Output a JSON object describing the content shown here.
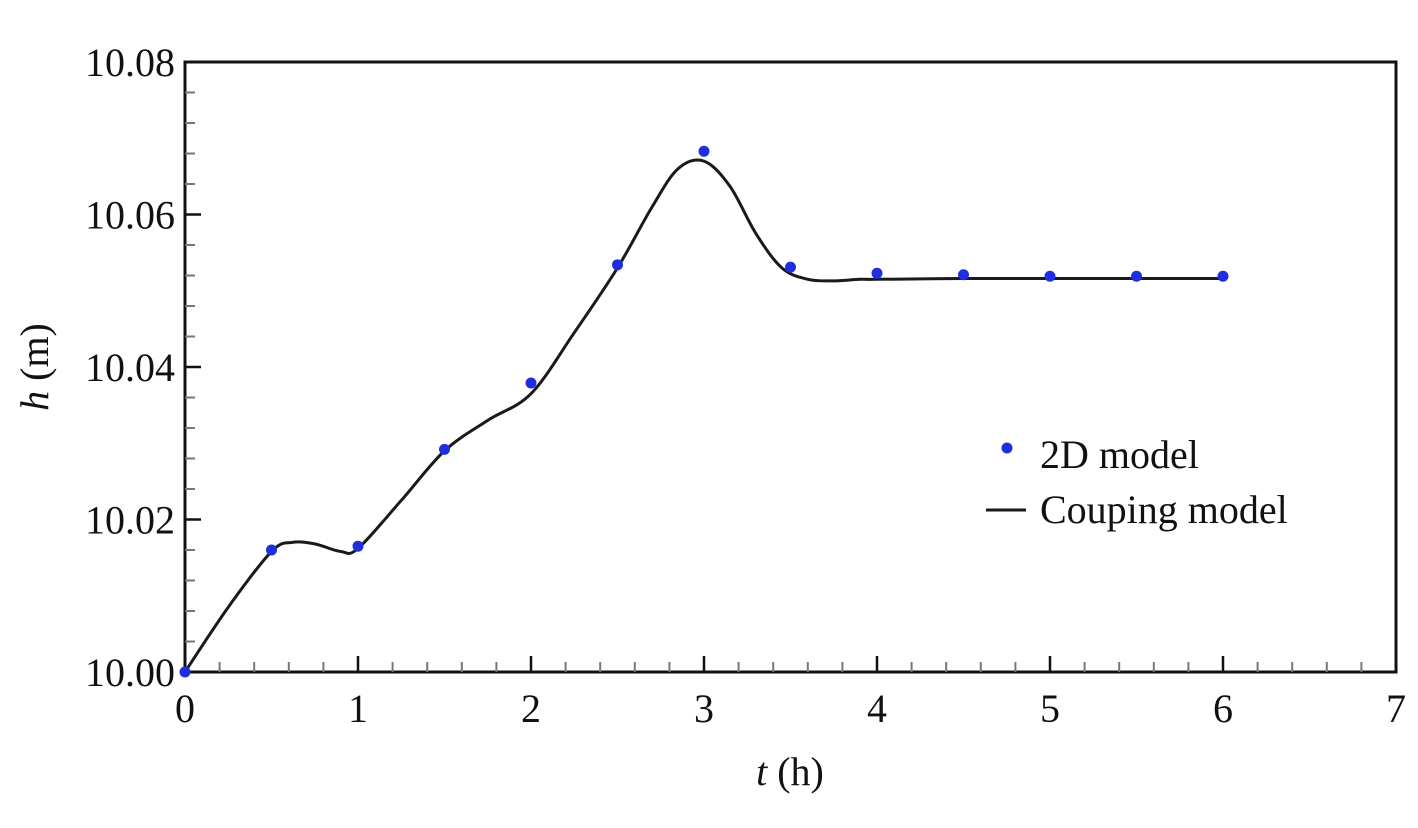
{
  "chart_data": {
    "type": "line",
    "xlabel": {
      "var": "t",
      "unit": " (h)"
    },
    "ylabel": {
      "var": "h",
      "unit": " (m)"
    },
    "xlim": [
      0,
      7
    ],
    "ylim": [
      10.0,
      10.08
    ],
    "x_ticks": [
      0,
      1,
      2,
      3,
      4,
      5,
      6,
      7
    ],
    "x_tick_labels": [
      "0",
      "1",
      "2",
      "3",
      "4",
      "5",
      "6",
      "7"
    ],
    "y_ticks": [
      10.0,
      10.02,
      10.04,
      10.06,
      10.08
    ],
    "y_tick_labels": [
      "10.00",
      "10.02",
      "10.04",
      "10.06",
      "10.08"
    ],
    "grid": false,
    "legend_position": "right",
    "series": [
      {
        "name": "2D model",
        "kind": "scatter",
        "color": "#1f2fe0",
        "x": [
          0,
          0.5,
          1,
          1.5,
          2,
          2.5,
          3,
          3.5,
          4,
          4.5,
          5,
          5.5,
          6
        ],
        "y": [
          10.0,
          10.016,
          10.0165,
          10.0292,
          10.0379,
          10.0534,
          10.0683,
          10.0531,
          10.0523,
          10.0521,
          10.0519,
          10.0519,
          10.0519
        ]
      },
      {
        "name": "Couping model",
        "kind": "line",
        "color": "#1a1a1a",
        "x": [
          0,
          0.25,
          0.5,
          0.62,
          0.75,
          0.9,
          1.0,
          1.25,
          1.5,
          1.75,
          2.0,
          2.25,
          2.5,
          2.7,
          2.85,
          3.0,
          3.15,
          3.3,
          3.45,
          3.6,
          3.75,
          3.9,
          4.0,
          4.5,
          5.0,
          5.5,
          6.0
        ],
        "y": [
          10.0,
          10.0085,
          10.0158,
          10.017,
          10.0168,
          10.0158,
          10.0162,
          10.0225,
          10.029,
          10.033,
          10.0365,
          10.0445,
          10.053,
          10.061,
          10.066,
          10.067,
          10.0637,
          10.0575,
          10.053,
          10.0515,
          10.0513,
          10.0515,
          10.0515,
          10.0516,
          10.0516,
          10.0516,
          10.0516
        ]
      }
    ]
  }
}
